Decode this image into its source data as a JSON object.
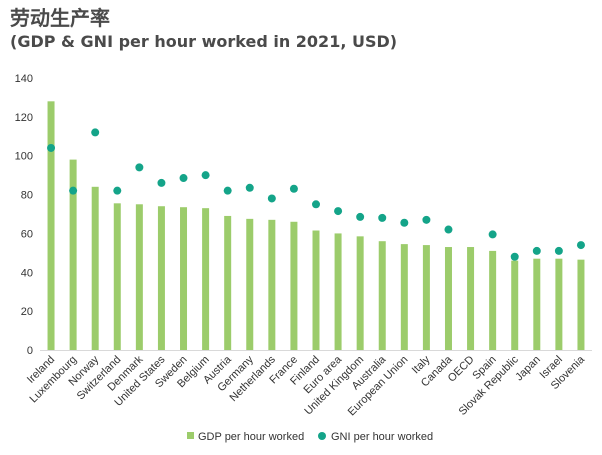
{
  "chart_data": {
    "type": "bar",
    "title": "劳动生产率",
    "subtitle": "(GDP & GNI per hour worked in 2021, USD)",
    "categories": [
      "Ireland",
      "Luxembourg",
      "Norway",
      "Switzerland",
      "Denmark",
      "United States",
      "Sweden",
      "Belgium",
      "Austria",
      "Germany",
      "Netherlands",
      "France",
      "Finland",
      "Euro area",
      "United Kingdom",
      "Australia",
      "European Union",
      "Italy",
      "Canada",
      "OECD",
      "Spain",
      "Slovak Republic",
      "Japan",
      "Israel",
      "Slovenia"
    ],
    "series": [
      {
        "name": "GDP per hour worked",
        "type": "bar",
        "values": [
          128,
          98,
          84,
          75.5,
          75,
          74,
          73.5,
          73,
          69,
          67.5,
          67,
          66,
          61.5,
          60,
          58.5,
          56,
          54.5,
          54,
          53,
          53,
          51,
          46,
          47,
          47,
          46.5
        ]
      },
      {
        "name": "GNI per hour worked",
        "type": "scatter",
        "values": [
          104,
          82,
          112,
          82,
          94,
          86,
          88.5,
          90,
          82,
          83.5,
          78,
          83,
          75,
          71.5,
          68.5,
          68,
          65.5,
          67,
          62,
          null,
          59.5,
          48,
          51,
          51,
          54
        ]
      }
    ],
    "ylim": [
      0,
      140
    ],
    "yticks": [
      0,
      20,
      40,
      60,
      80,
      100,
      120,
      140
    ],
    "grid": false,
    "legend": "bottom",
    "colors": {
      "bar": "#9ccc6b",
      "dot": "#14a489"
    }
  }
}
